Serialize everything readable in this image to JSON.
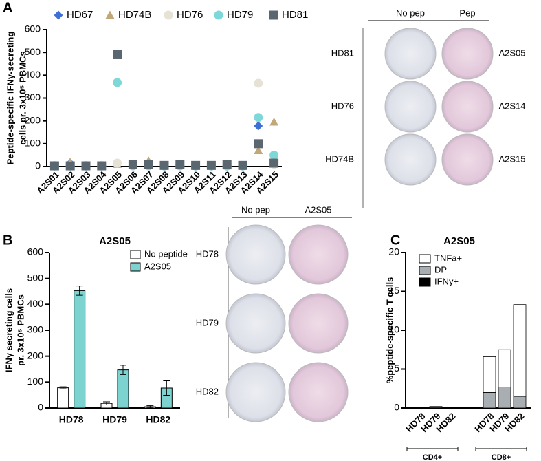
{
  "panel_labels": [
    "A",
    "B",
    "C"
  ],
  "elispot": [
    {
      "columns": [
        "No pep",
        "Pep"
      ],
      "rows": [
        {
          "left": "HD81",
          "right": "A2S05"
        },
        {
          "left": "HD76",
          "right": "A2S14"
        },
        {
          "left": "HD74B",
          "right": "A2S15"
        }
      ]
    },
    {
      "columns": [
        "No pep",
        "A2S05"
      ],
      "rows": [
        {
          "left": "HD78"
        },
        {
          "left": "HD79"
        },
        {
          "left": "HD82"
        }
      ]
    }
  ],
  "chart_data": [
    {
      "type": "scatter",
      "ylabel": [
        "Peptide-specific IFNγ-secreting",
        "cells pr. 3x10⁵ PBMCs"
      ],
      "categories": [
        "A2S01",
        "A2S02",
        "A2S03",
        "A2S04",
        "A2S05",
        "A2S06",
        "A2S07",
        "A2S08",
        "A2S09",
        "A2S10",
        "A2S11",
        "A2S12",
        "A2S13",
        "A2S14",
        "A2S15"
      ],
      "series": [
        {
          "name": "HD67",
          "color": "#3d6fd6",
          "marker": "diamond",
          "values": [
            2,
            15,
            2,
            2,
            15,
            3,
            3,
            2,
            3,
            2,
            2,
            2,
            2,
            178,
            20
          ]
        },
        {
          "name": "HD74B",
          "color": "#c2a878",
          "marker": "triangle",
          "values": [
            3,
            20,
            3,
            3,
            10,
            5,
            25,
            3,
            5,
            3,
            3,
            3,
            3,
            70,
            195
          ]
        },
        {
          "name": "HD76",
          "color": "#e6e2d6",
          "marker": "circle",
          "values": [
            5,
            5,
            5,
            5,
            15,
            8,
            8,
            5,
            8,
            5,
            5,
            5,
            5,
            365,
            10
          ]
        },
        {
          "name": "HD79",
          "color": "#7fd8d8",
          "marker": "circle",
          "values": [
            2,
            2,
            2,
            2,
            368,
            3,
            3,
            2,
            3,
            2,
            2,
            2,
            2,
            215,
            50
          ]
        },
        {
          "name": "HD81",
          "color": "#5b6770",
          "marker": "square",
          "values": [
            3,
            3,
            3,
            3,
            490,
            10,
            10,
            5,
            10,
            5,
            5,
            8,
            5,
            100,
            15
          ]
        }
      ],
      "ylim": [
        0,
        600
      ],
      "yticks": [
        0,
        100,
        200,
        300,
        400,
        500,
        600
      ]
    },
    {
      "type": "bar",
      "title": "A2S05",
      "ylabel": [
        "IFNγ secreting cells",
        "pr. 3x10⁵ PBMCs"
      ],
      "categories": [
        "HD78",
        "HD79",
        "HD82"
      ],
      "series": [
        {
          "name": "No peptide",
          "color": "#ffffff",
          "values": [
            78,
            18,
            5
          ],
          "errors": [
            4,
            6,
            4
          ]
        },
        {
          "name": "A2S05",
          "color": "#7dd3d0",
          "values": [
            453,
            147,
            77
          ],
          "errors": [
            18,
            18,
            28
          ]
        }
      ],
      "ylim": [
        0,
        600
      ],
      "yticks": [
        0,
        100,
        200,
        300,
        400,
        500,
        600
      ]
    },
    {
      "type": "stacked_bar",
      "title": "A2S05",
      "ylabel": [
        "%peptide-specific T cells"
      ],
      "categories": [
        "HD78",
        "HD79",
        "HD82",
        "HD78",
        "HD79",
        "HD82"
      ],
      "group_labels": [
        "CD4+",
        "CD8+"
      ],
      "series": [
        {
          "name": "IFNy+",
          "color": "#000000",
          "values": [
            0,
            0,
            0,
            0,
            0,
            0
          ]
        },
        {
          "name": "DP",
          "color": "#a9aeb2",
          "values": [
            0,
            0.1,
            0,
            2,
            2.7,
            1.5
          ]
        },
        {
          "name": "TNFa+",
          "color": "#ffffff",
          "values": [
            0,
            0.1,
            0,
            4.6,
            4.8,
            11.8
          ]
        }
      ],
      "ylim": [
        0,
        20
      ],
      "yticks": [
        0,
        5,
        10,
        15,
        20
      ]
    }
  ]
}
